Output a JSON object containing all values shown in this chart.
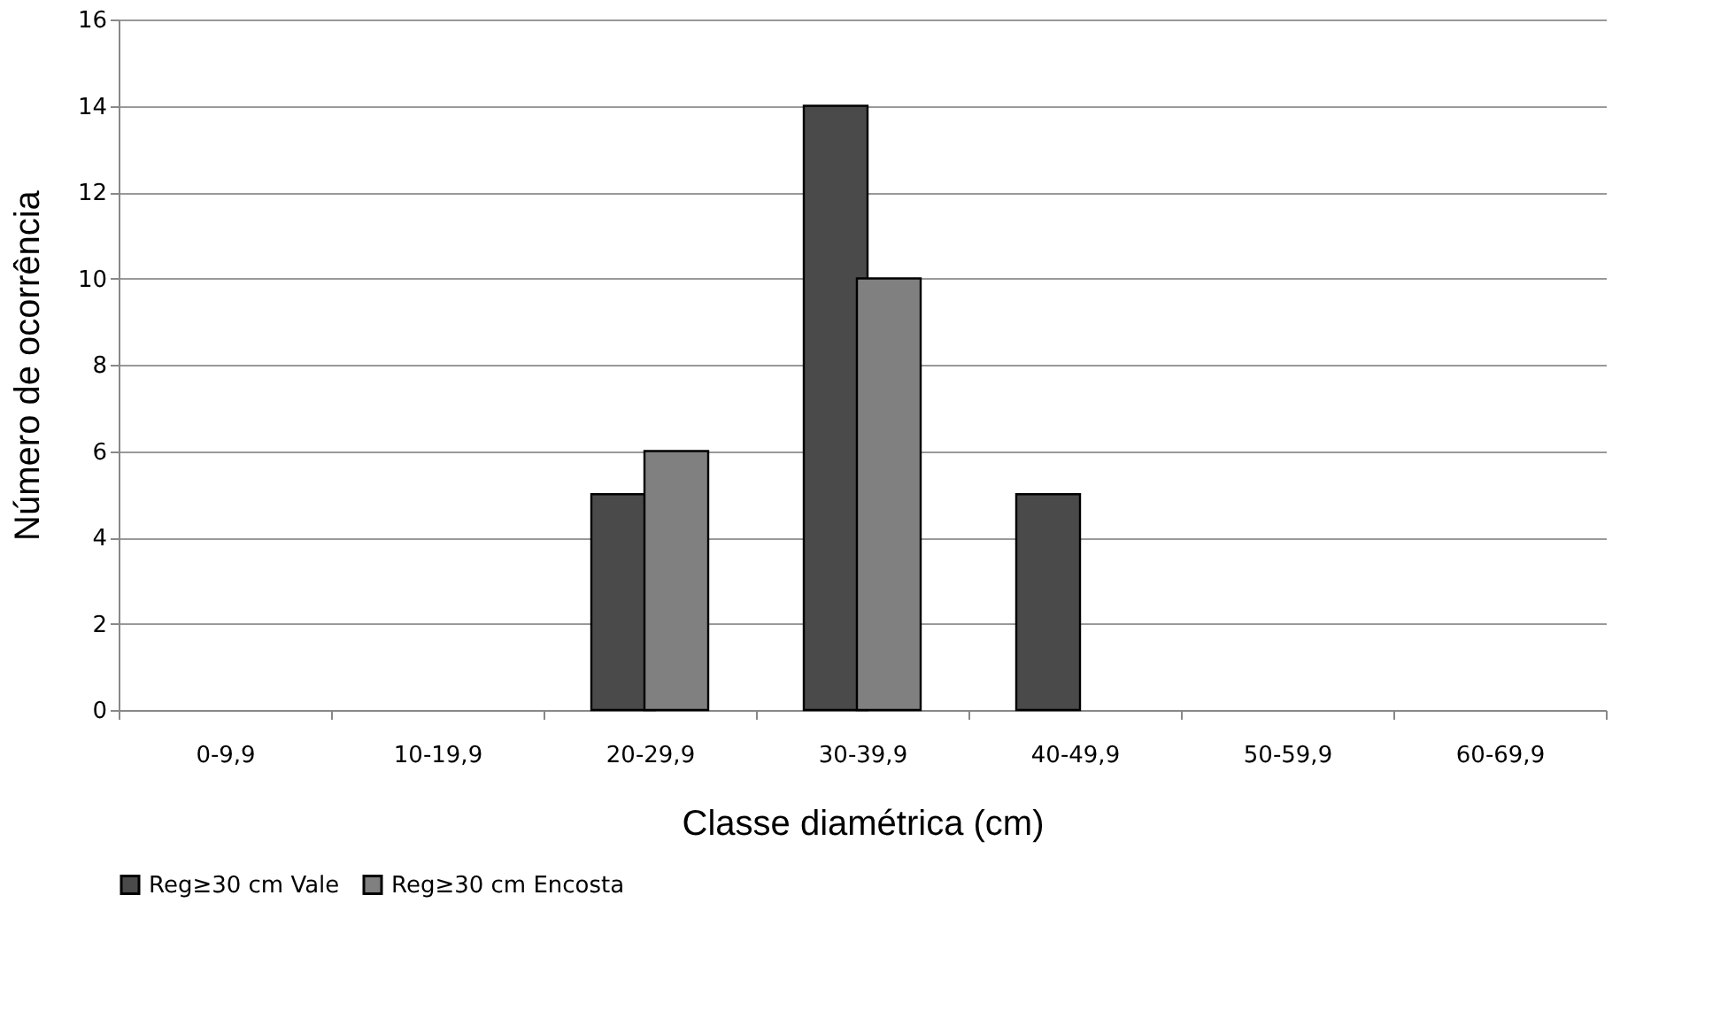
{
  "chart_data": {
    "type": "bar",
    "xlabel": "Classe diamétrica (cm)",
    "ylabel": "Número de ocorrência",
    "categories": [
      "0-9,9",
      "10-19,9",
      "20-29,9",
      "30-39,9",
      "40-49,9",
      "50-59,9",
      "60-69,9"
    ],
    "series": [
      {
        "name": "Reg≥30 cm Vale",
        "color": "#4a4a4a",
        "values": [
          0,
          0,
          5,
          14,
          5,
          0,
          0
        ]
      },
      {
        "name": "Reg≥30 cm Encosta",
        "color": "#808080",
        "values": [
          0,
          0,
          6,
          10,
          0,
          0,
          0
        ]
      }
    ],
    "ylim": [
      0,
      16
    ],
    "yticks": [
      0,
      2,
      4,
      6,
      8,
      10,
      12,
      14,
      16
    ],
    "grid": "y",
    "legend": "bottom"
  }
}
